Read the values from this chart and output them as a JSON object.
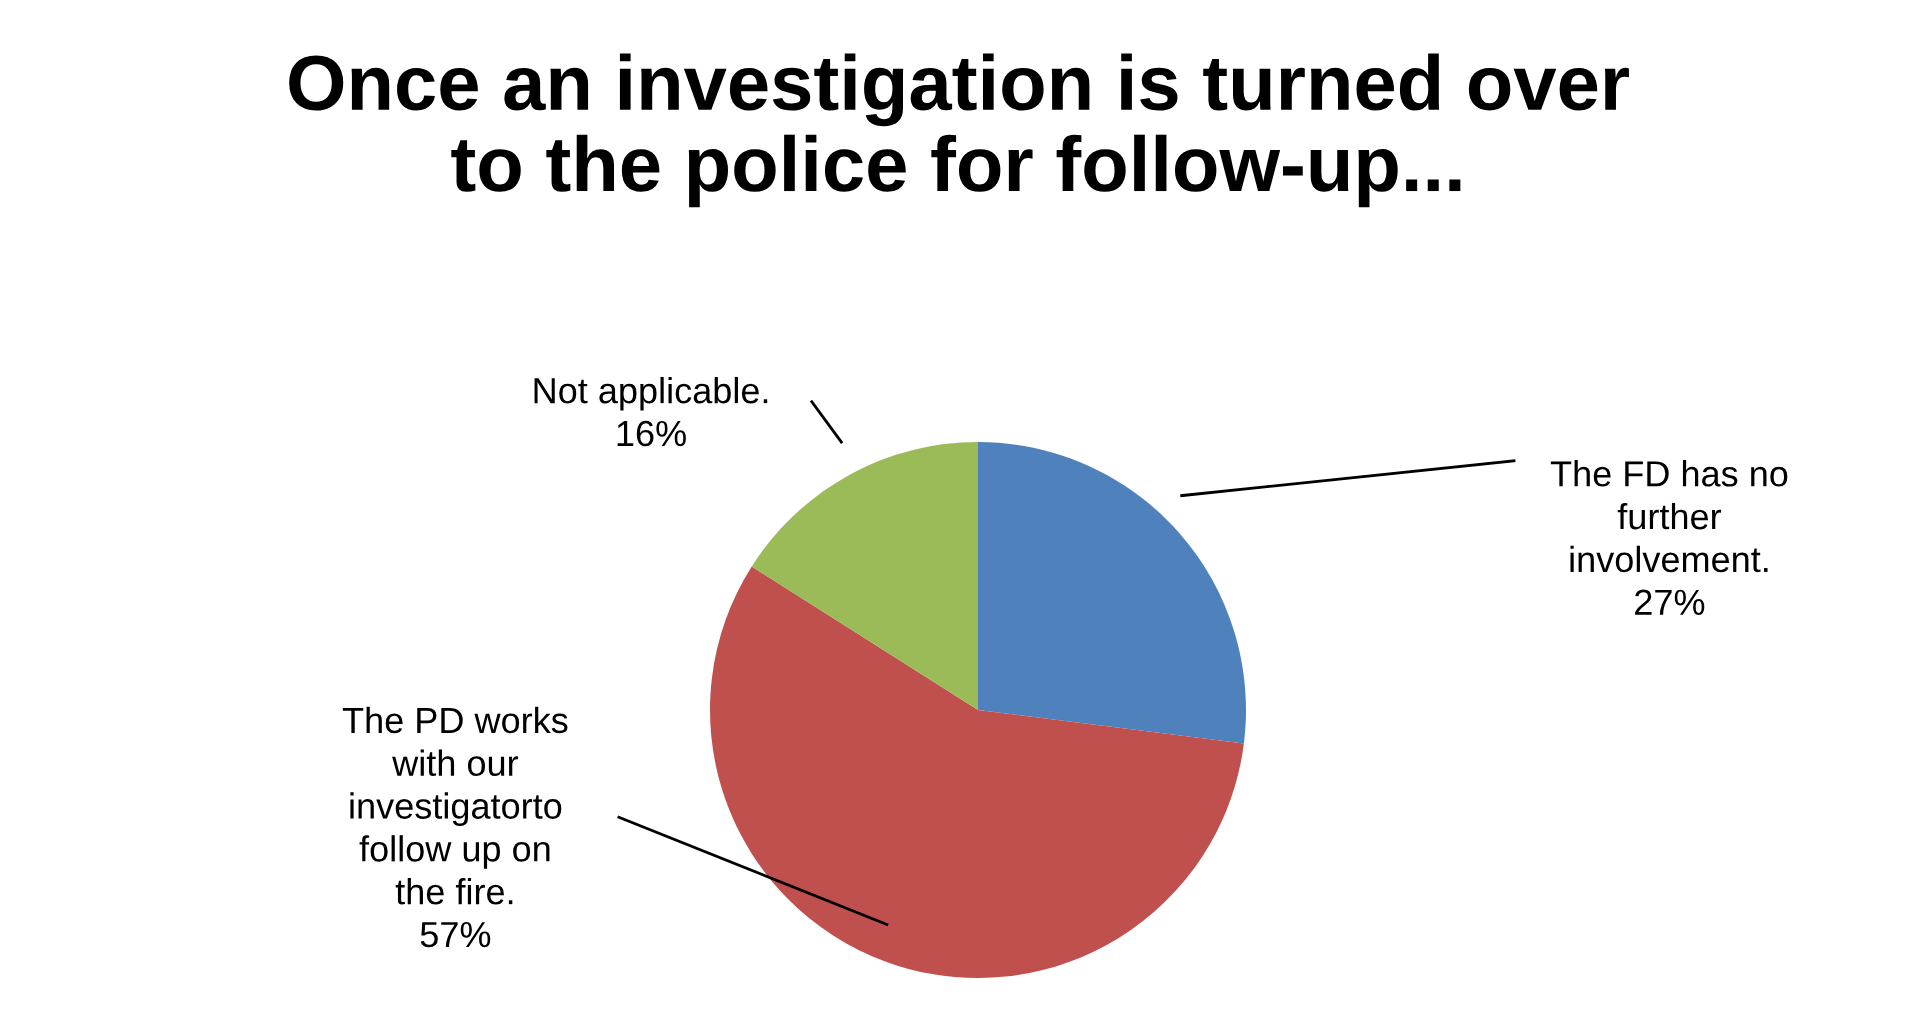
{
  "chart_data": {
    "type": "pie",
    "title": "Once an investigation is turned over to the police for follow-up...",
    "categories": [
      "The FD has no further involvement.",
      "The PD works with our investigatorto follow up on the fire.",
      "Not applicable."
    ],
    "values": [
      27,
      57,
      16
    ],
    "colors": [
      "#4f81bd",
      "#c0504d",
      "#9bbb59"
    ],
    "value_labels": [
      "27%",
      "57%",
      "16%"
    ],
    "legend": false
  }
}
